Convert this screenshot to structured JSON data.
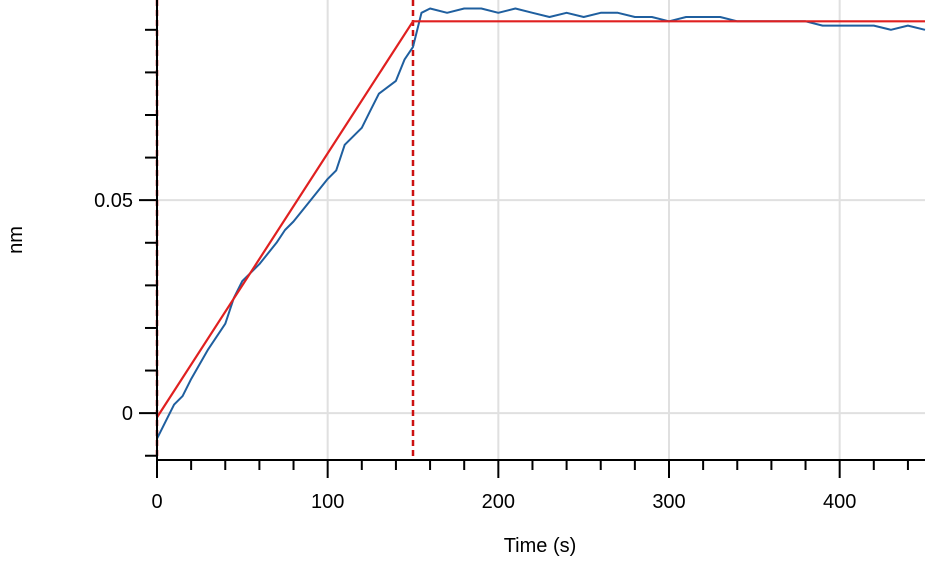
{
  "chart_data": {
    "type": "line",
    "title": "",
    "xlabel": "Time (s)",
    "ylabel": "nm",
    "xlim": [
      0,
      450
    ],
    "ylim": [
      -0.011,
      0.097
    ],
    "grid": true,
    "legend": "none",
    "x_ticks": [
      0,
      100,
      200,
      300,
      400
    ],
    "x_tick_labels": [
      "0",
      "100",
      "200",
      "300",
      "400"
    ],
    "y_ticks": [
      0,
      0.05
    ],
    "y_tick_labels": [
      "0",
      "0.05"
    ],
    "x_minor_step": 20,
    "y_minor_step": 0.01,
    "phase_markers": [
      0,
      150
    ],
    "series": [
      {
        "role": "measured",
        "color": "#1f5f9f",
        "x": [
          0,
          5,
          10,
          15,
          20,
          30,
          40,
          45,
          50,
          55,
          60,
          70,
          75,
          80,
          90,
          100,
          105,
          110,
          120,
          125,
          130,
          140,
          145,
          150,
          155,
          160,
          170,
          180,
          190,
          200,
          210,
          220,
          230,
          240,
          250,
          260,
          270,
          280,
          290,
          300,
          310,
          320,
          330,
          340,
          350,
          360,
          370,
          380,
          390,
          400,
          410,
          420,
          430,
          440,
          450
        ],
        "y": [
          -0.006,
          -0.002,
          0.002,
          0.004,
          0.008,
          0.015,
          0.021,
          0.027,
          0.031,
          0.033,
          0.035,
          0.04,
          0.043,
          0.045,
          0.05,
          0.055,
          0.057,
          0.063,
          0.067,
          0.071,
          0.075,
          0.078,
          0.083,
          0.086,
          0.094,
          0.095,
          0.094,
          0.095,
          0.095,
          0.094,
          0.095,
          0.094,
          0.093,
          0.094,
          0.093,
          0.094,
          0.094,
          0.093,
          0.093,
          0.092,
          0.093,
          0.093,
          0.093,
          0.092,
          0.092,
          0.092,
          0.092,
          0.092,
          0.091,
          0.091,
          0.091,
          0.091,
          0.09,
          0.091,
          0.09
        ]
      },
      {
        "role": "fit",
        "color": "#e02020",
        "x": [
          0,
          150,
          150,
          450
        ],
        "y": [
          -0.001,
          0.092,
          0.092,
          0.092
        ]
      }
    ],
    "colors": {
      "measured": "#1f5f9f",
      "fit": "#e02020",
      "marker": "#cc1111",
      "grid": "#e0e0e0",
      "axis": "#000000"
    }
  }
}
